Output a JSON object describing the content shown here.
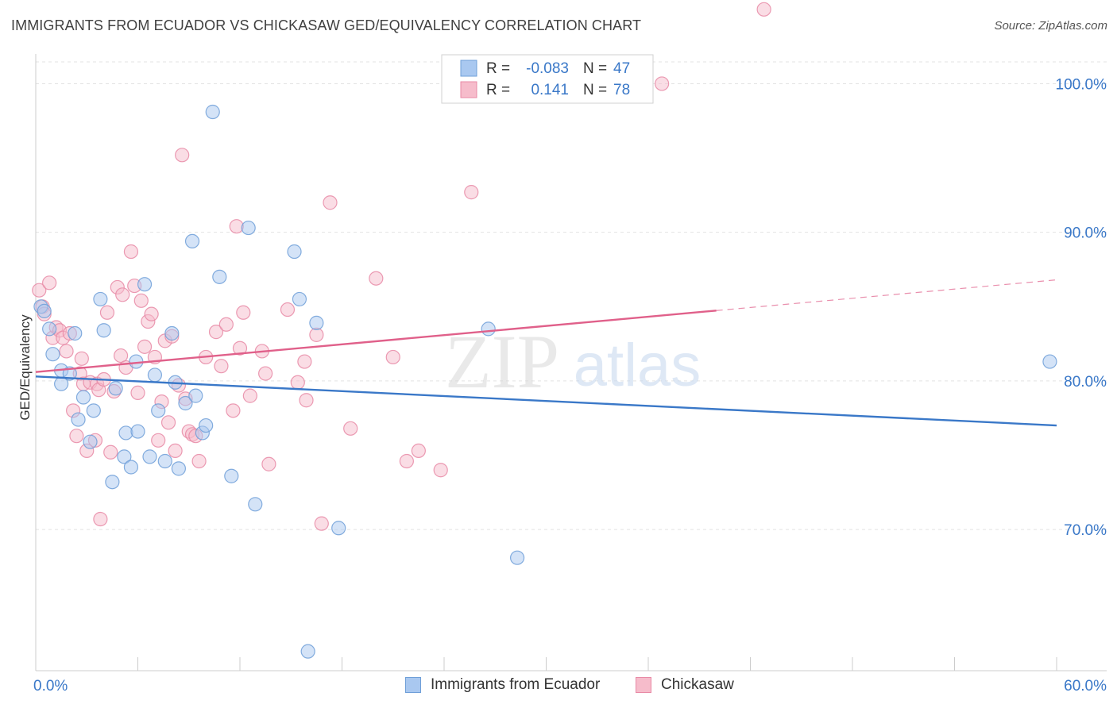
{
  "header": {
    "title": "IMMIGRANTS FROM ECUADOR VS CHICKASAW GED/EQUIVALENCY CORRELATION CHART",
    "source": "Source: ZipAtlas.com"
  },
  "watermark": {
    "zip": "ZIP",
    "atlas": "atlas"
  },
  "colors": {
    "blue_fill": "#a9c8f0",
    "blue_stroke": "#6f9fd8",
    "blue_line": "#3a78c8",
    "pink_fill": "#f6bccb",
    "pink_stroke": "#e88aa6",
    "pink_line": "#e0608a",
    "value_text": "#3a78c8",
    "grid": "#e3e3e3"
  },
  "stats_legend": {
    "rows": [
      {
        "r_label": "R =",
        "r_value": "-0.083",
        "n_label": "N =",
        "n_value": "47"
      },
      {
        "r_label": "R =",
        "r_value": "0.141",
        "n_label": "N =",
        "n_value": "78"
      }
    ]
  },
  "chart_data": {
    "type": "scatter",
    "title": "IMMIGRANTS FROM ECUADOR VS CHICKASAW GED/EQUIVALENCY CORRELATION CHART",
    "xlabel": "",
    "ylabel": "GED/Equivalency",
    "xlim": [
      0,
      60
    ],
    "ylim": [
      60.5,
      102
    ],
    "x_tick_labels": [
      "0.0%",
      "60.0%"
    ],
    "y_ticks": [
      70,
      80,
      90,
      100
    ],
    "y_tick_labels": [
      "70.0%",
      "80.0%",
      "90.0%",
      "100.0%"
    ],
    "grid": true,
    "legend_position": "bottom",
    "series": [
      {
        "name": "Immigrants from Ecuador",
        "color": "#a9c8f0",
        "trend": {
          "x": [
            0,
            60
          ],
          "y": [
            80.3,
            77.0
          ],
          "solid_to": 60
        },
        "points": [
          [
            0.3,
            85.0
          ],
          [
            0.5,
            84.7
          ],
          [
            0.8,
            83.5
          ],
          [
            1.0,
            81.8
          ],
          [
            1.5,
            80.7
          ],
          [
            1.5,
            79.8
          ],
          [
            2.0,
            80.5
          ],
          [
            2.3,
            83.2
          ],
          [
            2.5,
            77.4
          ],
          [
            2.8,
            78.9
          ],
          [
            3.2,
            75.9
          ],
          [
            3.4,
            78.0
          ],
          [
            3.8,
            85.5
          ],
          [
            4.0,
            83.4
          ],
          [
            4.5,
            73.2
          ],
          [
            4.7,
            79.5
          ],
          [
            5.2,
            74.9
          ],
          [
            5.3,
            76.5
          ],
          [
            5.6,
            74.2
          ],
          [
            5.9,
            81.3
          ],
          [
            6.0,
            76.6
          ],
          [
            6.4,
            86.5
          ],
          [
            6.7,
            74.9
          ],
          [
            7.0,
            80.4
          ],
          [
            7.2,
            78.0
          ],
          [
            7.6,
            74.6
          ],
          [
            8.0,
            83.2
          ],
          [
            8.2,
            79.9
          ],
          [
            8.4,
            74.1
          ],
          [
            8.8,
            78.5
          ],
          [
            9.2,
            89.4
          ],
          [
            9.4,
            79.0
          ],
          [
            9.8,
            76.5
          ],
          [
            10.0,
            77.0
          ],
          [
            10.4,
            98.1
          ],
          [
            10.8,
            87.0
          ],
          [
            11.5,
            73.6
          ],
          [
            12.5,
            90.3
          ],
          [
            12.9,
            71.7
          ],
          [
            15.2,
            88.7
          ],
          [
            15.5,
            85.5
          ],
          [
            16.0,
            61.8
          ],
          [
            16.5,
            83.9
          ],
          [
            17.8,
            70.1
          ],
          [
            26.6,
            83.5
          ],
          [
            28.3,
            68.1
          ],
          [
            59.6,
            81.3
          ]
        ]
      },
      {
        "name": "Chickasaw",
        "color": "#f6bccb",
        "trend": {
          "x": [
            0,
            60
          ],
          "y": [
            80.6,
            86.8
          ],
          "solid_to": 40
        },
        "points": [
          [
            0.2,
            86.1
          ],
          [
            0.4,
            85.0
          ],
          [
            0.5,
            84.5
          ],
          [
            0.8,
            86.6
          ],
          [
            1.0,
            82.9
          ],
          [
            1.2,
            83.6
          ],
          [
            1.4,
            83.4
          ],
          [
            1.6,
            82.9
          ],
          [
            1.8,
            82.0
          ],
          [
            2.0,
            83.2
          ],
          [
            2.2,
            78.0
          ],
          [
            2.4,
            76.3
          ],
          [
            2.6,
            80.5
          ],
          [
            2.7,
            81.5
          ],
          [
            2.8,
            79.8
          ],
          [
            3.0,
            75.3
          ],
          [
            3.2,
            79.9
          ],
          [
            3.5,
            76.0
          ],
          [
            3.6,
            79.8
          ],
          [
            3.7,
            79.4
          ],
          [
            3.8,
            70.7
          ],
          [
            4.0,
            80.1
          ],
          [
            4.2,
            84.6
          ],
          [
            4.4,
            75.2
          ],
          [
            4.6,
            79.3
          ],
          [
            4.8,
            86.3
          ],
          [
            5.0,
            81.7
          ],
          [
            5.1,
            85.8
          ],
          [
            5.3,
            80.9
          ],
          [
            5.6,
            88.7
          ],
          [
            5.8,
            86.4
          ],
          [
            6.0,
            79.2
          ],
          [
            6.2,
            85.4
          ],
          [
            6.4,
            82.3
          ],
          [
            6.6,
            84.0
          ],
          [
            6.8,
            84.5
          ],
          [
            7.0,
            81.6
          ],
          [
            7.2,
            76.0
          ],
          [
            7.4,
            78.6
          ],
          [
            7.6,
            82.7
          ],
          [
            7.8,
            77.2
          ],
          [
            8.0,
            83.0
          ],
          [
            8.2,
            75.3
          ],
          [
            8.4,
            79.7
          ],
          [
            8.6,
            95.2
          ],
          [
            8.8,
            78.8
          ],
          [
            9.0,
            76.6
          ],
          [
            9.2,
            76.4
          ],
          [
            9.4,
            76.3
          ],
          [
            9.6,
            74.6
          ],
          [
            10.0,
            81.6
          ],
          [
            10.6,
            83.3
          ],
          [
            10.9,
            81.0
          ],
          [
            11.2,
            83.8
          ],
          [
            11.6,
            78.0
          ],
          [
            11.8,
            90.4
          ],
          [
            12.0,
            82.2
          ],
          [
            12.2,
            84.6
          ],
          [
            12.6,
            79.0
          ],
          [
            13.3,
            82.0
          ],
          [
            13.5,
            80.5
          ],
          [
            13.7,
            74.4
          ],
          [
            14.8,
            84.8
          ],
          [
            15.4,
            79.9
          ],
          [
            15.8,
            81.3
          ],
          [
            15.9,
            78.7
          ],
          [
            16.5,
            83.1
          ],
          [
            16.8,
            70.4
          ],
          [
            17.3,
            92.0
          ],
          [
            18.5,
            76.8
          ],
          [
            20.0,
            86.9
          ],
          [
            21.0,
            81.6
          ],
          [
            21.8,
            74.6
          ],
          [
            22.5,
            75.3
          ],
          [
            23.8,
            74.0
          ],
          [
            25.6,
            92.7
          ],
          [
            36.8,
            100.0
          ],
          [
            42.8,
            105.0
          ]
        ]
      }
    ]
  },
  "bottom_legend": {
    "items": [
      {
        "label": "Immigrants from Ecuador"
      },
      {
        "label": "Chickasaw"
      }
    ]
  }
}
